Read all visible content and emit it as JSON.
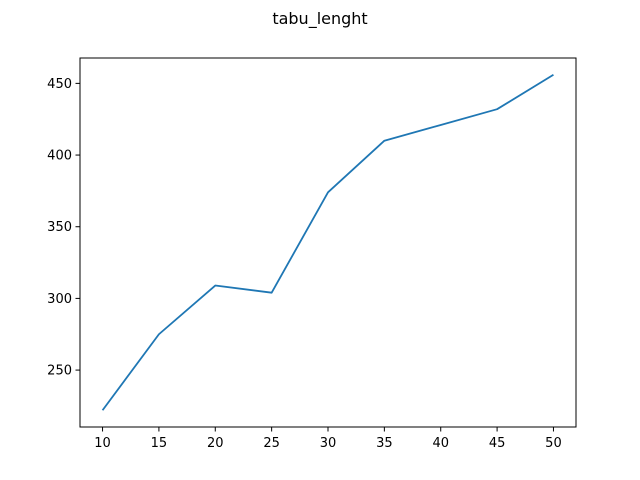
{
  "chart_data": {
    "type": "line",
    "title": "tabu_lenght",
    "xlabel": "",
    "ylabel": "",
    "x": [
      10,
      15,
      20,
      25,
      30,
      35,
      40,
      45,
      50
    ],
    "series": [
      {
        "values": [
          222,
          275,
          309,
          304,
          374,
          410,
          421,
          432,
          456
        ],
        "color": "#1f77b4"
      }
    ],
    "xlim": [
      8.0,
      52.0
    ],
    "ylim": [
      210.3,
      467.7
    ],
    "xticks": [
      10,
      15,
      20,
      25,
      30,
      35,
      40,
      45,
      50
    ],
    "yticks": [
      250,
      300,
      350,
      400,
      450
    ],
    "grid": false,
    "legend": "none"
  }
}
